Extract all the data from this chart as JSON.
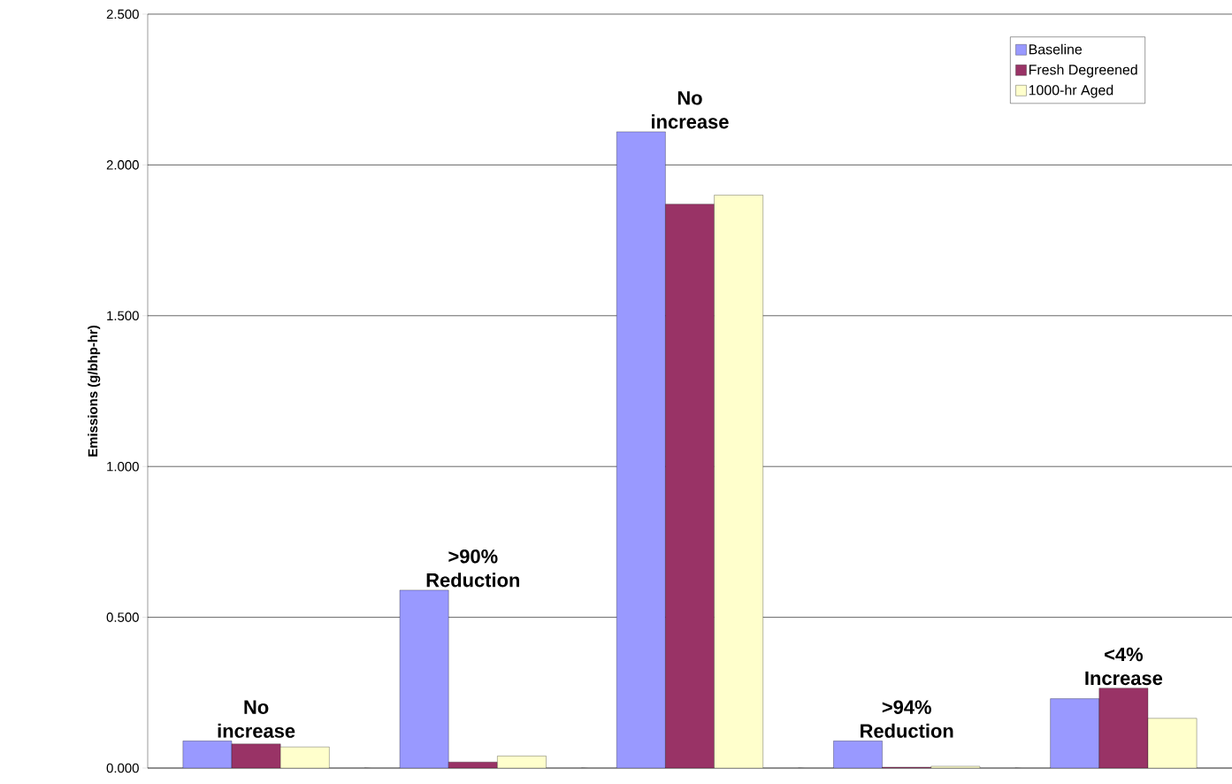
{
  "chart_data": {
    "type": "bar",
    "ylabel": "Emissions (g/bhp-hr)",
    "categories": [
      null,
      null,
      null,
      null,
      null
    ],
    "series": [
      {
        "name": "Baseline",
        "color": "#9999ff",
        "values": [
          0.09,
          0.59,
          2.11,
          0.09,
          0.23
        ]
      },
      {
        "name": "Fresh Degreened",
        "color": "#993366",
        "values": [
          0.08,
          0.02,
          1.87,
          0.003,
          0.265
        ]
      },
      {
        "name": "1000-hr Aged",
        "color": "#ffffcc",
        "values": [
          0.07,
          0.04,
          1.9,
          0.006,
          0.165
        ]
      }
    ],
    "ylim": [
      0,
      2.5
    ],
    "yticks": [
      {
        "value": 0,
        "label": "0.000"
      },
      {
        "value": 0.5,
        "label": "0.500"
      },
      {
        "value": 1,
        "label": "1.000"
      },
      {
        "value": 1.5,
        "label": "1.500"
      },
      {
        "value": 2,
        "label": "2.000"
      },
      {
        "value": 2.5,
        "label": "2.500"
      }
    ],
    "grid": "y",
    "legend": "top right",
    "annotations": [
      "No increase",
      ">90% Reduction",
      "No increase",
      ">94% Reduction",
      "<4% Increase"
    ]
  }
}
